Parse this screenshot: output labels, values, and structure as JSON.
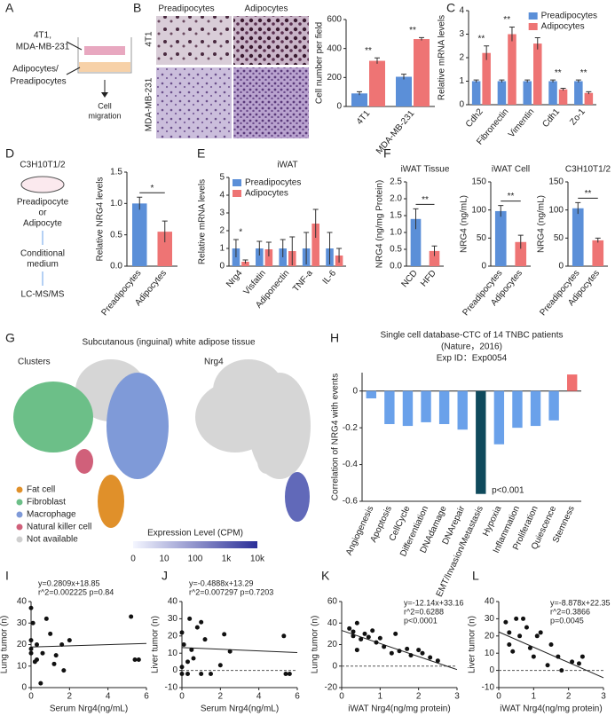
{
  "panel_letters": [
    "A",
    "B",
    "C",
    "D",
    "E",
    "F",
    "G",
    "H",
    "I",
    "J",
    "K",
    "L"
  ],
  "diagrams": {
    "a": {
      "line1": "4T1,",
      "line2": "MDA-MB-231",
      "line3": "Adipocytes/",
      "line4": "Preadipocytes",
      "out1": "Cell",
      "out2": "migration"
    },
    "b": {
      "cols": [
        "Preadipocytes",
        "Adipocytes"
      ],
      "rows": [
        "4T1",
        "MDA-MB-231"
      ]
    },
    "d": {
      "lines": [
        "C3H10T1/2",
        "Preadipocyte",
        "or",
        "Adipocyte",
        "Conditional",
        "medium",
        "LC-MS/MS"
      ]
    },
    "g": {
      "title": "Subcutanous (inguinal) white adipose tissue",
      "left": "Clusters",
      "right": "Nrg4",
      "legend": [
        {
          "name": "Fat cell",
          "color": "#e0902a"
        },
        {
          "name": "Fibroblast",
          "color": "#6cbf88"
        },
        {
          "name": "Macrophage",
          "color": "#7f9ad8"
        },
        {
          "name": "Natural killer cell",
          "color": "#d0607a"
        },
        {
          "name": "Not available",
          "color": "#cfcfcf"
        }
      ],
      "scale_title": "Expression Level (CPM)",
      "scale_labels": [
        "0",
        "10",
        "100",
        "1k",
        "10k"
      ]
    }
  },
  "chart_data": [
    {
      "type": "bar",
      "ylabel": "Cell number per field",
      "categories": [
        "4T1",
        "MDA-MB-231"
      ],
      "series": [
        {
          "color": "#5b8fd8",
          "values": [
            90,
            205
          ],
          "errors": [
            12,
            18
          ]
        },
        {
          "color": "#ee7474",
          "values": [
            315,
            465
          ],
          "errors": [
            20,
            10
          ]
        }
      ],
      "ylim": [
        0,
        600
      ],
      "yticks": [
        0,
        200,
        400,
        600
      ],
      "annotations": [
        "**",
        "**"
      ]
    },
    {
      "type": "bar",
      "ylabel": "Relative mRNA levels",
      "categories": [
        "Cdh2",
        "Fibronectin",
        "Vimentin",
        "Cdh1",
        "Zo-1"
      ],
      "series": [
        {
          "name": "Preadipocytes",
          "color": "#5b8fd8",
          "values": [
            1,
            1,
            1,
            1,
            1
          ],
          "errors": [
            0.05,
            0.05,
            0.05,
            0.05,
            0.05
          ]
        },
        {
          "name": "Adipocytes",
          "color": "#ee7474",
          "values": [
            2.2,
            3.0,
            2.6,
            0.65,
            0.5
          ],
          "errors": [
            0.3,
            0.3,
            0.25,
            0.05,
            0.05
          ]
        }
      ],
      "ylim": [
        0,
        4
      ],
      "yticks": [
        0,
        1,
        2,
        3,
        4
      ],
      "legend": true,
      "annotations": [
        "**",
        "**",
        "**",
        "**",
        "**"
      ]
    },
    {
      "type": "bar",
      "ylabel": "Relative NRG4 levels",
      "categories": [
        "Preadipocytes",
        "Adipocytes"
      ],
      "values": [
        1.0,
        0.55
      ],
      "errors": [
        0.1,
        0.17
      ],
      "colors": [
        "#5b8fd8",
        "#ee7474"
      ],
      "ylim": [
        0,
        1.5
      ],
      "yticks": [
        {
          "value": 0,
          "label": "0.0"
        },
        {
          "value": 0.5,
          "label": "0.5"
        },
        {
          "value": 1,
          "label": "1.0"
        },
        {
          "value": 1.5,
          "label": "1.5"
        }
      ],
      "annotations": [
        "*"
      ]
    },
    {
      "type": "bar",
      "title": "iWAT",
      "ylabel": "Relative mRNA levels",
      "categories": [
        "Nrg4",
        "Visfatin",
        "Adiponectin",
        "TNF-a",
        "IL-6"
      ],
      "series": [
        {
          "name": "Preadipocytes",
          "color": "#5b8fd8",
          "values": [
            1,
            1,
            1,
            1,
            1
          ],
          "errors": [
            0.5,
            0.4,
            0.5,
            0.9,
            0.9
          ]
        },
        {
          "name": "Adipocytes",
          "color": "#ee7474",
          "values": [
            0.25,
            0.95,
            0.85,
            2.4,
            0.6
          ],
          "errors": [
            0.1,
            0.4,
            0.8,
            0.8,
            0.4
          ]
        }
      ],
      "ylim": [
        0,
        5
      ],
      "yticks": [
        0,
        1,
        2,
        3,
        4,
        5
      ],
      "legend": true,
      "annotations": [
        "*"
      ]
    },
    {
      "type": "bar",
      "title": "iWAT Tissue",
      "ylabel": "NRG4 (ng/mg Protein)",
      "categories": [
        "NCD",
        "HFD"
      ],
      "values": [
        1.4,
        0.45
      ],
      "errors": [
        0.3,
        0.15
      ],
      "colors": [
        "#5b8fd8",
        "#ee7474"
      ],
      "ylim": [
        0,
        2.5
      ],
      "yticks": [
        {
          "value": 0,
          "label": "0.0"
        },
        {
          "value": 0.5,
          "label": "0.5"
        },
        {
          "value": 1,
          "label": "1.0"
        },
        {
          "value": 1.5,
          "label": "1.5"
        },
        {
          "value": 2,
          "label": "2.0"
        },
        {
          "value": 2.5,
          "label": "2.5"
        }
      ],
      "annotations": [
        "**"
      ]
    },
    {
      "type": "bar",
      "title": "iWAT Cell",
      "ylabel": "NRG4 (ng/mL)",
      "categories": [
        "Preadipocytes",
        "Adipocytes"
      ],
      "values": [
        98,
        43
      ],
      "errors": [
        10,
        12
      ],
      "colors": [
        "#5b8fd8",
        "#ee7474"
      ],
      "ylim": [
        0,
        150
      ],
      "yticks": [
        0,
        50,
        100,
        150
      ],
      "annotations": [
        "**"
      ]
    },
    {
      "type": "bar",
      "title": "C3H10T1/2",
      "ylabel": "NRG4 (ng/mL)",
      "categories": [
        "Preadipocytes",
        "Adipocytes"
      ],
      "values": [
        103,
        46
      ],
      "errors": [
        10,
        4
      ],
      "colors": [
        "#5b8fd8",
        "#ee7474"
      ],
      "ylim": [
        0,
        150
      ],
      "yticks": [
        0,
        50,
        100,
        150
      ],
      "annotations": [
        "**"
      ]
    },
    {
      "type": "bar",
      "title": [
        "Single cell database-CTC of 14 TNBC patients",
        "(Nature，2016)",
        "Exp ID：Exp0054"
      ],
      "ylabel": "Correlation of NRG4 with events",
      "categories": [
        "Angiogenesis",
        "Apoptosis",
        "CellCycle",
        "Differentiation",
        "DNAdamage",
        "DNArepair",
        "EMT/Invasion/Metastasis",
        "Hypoxia",
        "Inflammation",
        "Proliferation",
        "Quiescence",
        "Stemness"
      ],
      "values": [
        -0.04,
        -0.18,
        -0.19,
        -0.17,
        -0.18,
        -0.21,
        -0.56,
        -0.29,
        -0.2,
        -0.19,
        -0.16,
        0.09
      ],
      "colors": [
        "#6aa1ea",
        "#6aa1ea",
        "#6aa1ea",
        "#6aa1ea",
        "#6aa1ea",
        "#6aa1ea",
        "#0f4a5c",
        "#6aa1ea",
        "#6aa1ea",
        "#6aa1ea",
        "#6aa1ea",
        "#f07070"
      ],
      "ylim": [
        -0.6,
        0.1
      ],
      "yticks": [
        0,
        -0.2,
        -0.4,
        -0.6
      ],
      "annotations": [
        "p<0.001"
      ]
    },
    {
      "type": "scatter",
      "xlabel": "Serum Nrg4(ng/mL)",
      "ylabel": "Lung tumor (n)",
      "annotations": [
        "y=0.2809x+18.85",
        "r^2=0.002225 p=0.84"
      ],
      "fit": {
        "slope": 0.2809,
        "intercept": 18.85
      },
      "x": [
        0,
        0,
        0,
        0,
        0.1,
        0.2,
        0.3,
        0.3,
        0.5,
        0.6,
        0.8,
        1.0,
        1.2,
        1.3,
        1.6,
        1.7,
        2.0,
        5.2,
        5.4,
        5.6
      ],
      "values": [
        37,
        22,
        18,
        16,
        30,
        12,
        20,
        13,
        2,
        16,
        32,
        25,
        11,
        15,
        20,
        8,
        22,
        33,
        13,
        13
      ],
      "xlim": [
        0,
        6
      ],
      "xticks": [
        0,
        2,
        4,
        6
      ],
      "ylim": [
        0,
        40
      ],
      "yticks": [
        0,
        10,
        20,
        30,
        40
      ]
    },
    {
      "type": "scatter",
      "xlabel": "Serum Nrg4(ng/mL)",
      "ylabel": "Liver tumor (n)",
      "annotations": [
        "y=-0.4888x+13.29",
        "r^2=0.007297 p=0.7203"
      ],
      "fit": {
        "slope": -0.4888,
        "intercept": 13.29
      },
      "x": [
        0,
        0,
        0,
        0.1,
        0.3,
        0.3,
        0.4,
        0.5,
        0.6,
        0.8,
        1.0,
        1.0,
        1.2,
        1.5,
        2.0,
        2.2,
        2.5,
        5.3,
        5.4,
        5.6
      ],
      "values": [
        22,
        2,
        -2,
        15,
        5,
        -2,
        30,
        12,
        7,
        25,
        28,
        -2,
        18,
        -2,
        3,
        21,
        11,
        20,
        -2,
        -2
      ],
      "xlim": [
        0,
        6
      ],
      "xticks": [
        0,
        2,
        4,
        6
      ],
      "ylim": [
        -10,
        40
      ],
      "yticks": [
        -10,
        0,
        10,
        20,
        30,
        40
      ]
    },
    {
      "type": "scatter",
      "xlabel": "iWAT Nrg4(ng/mg protein)",
      "ylabel": "Lung tumor (n)",
      "annotations": [
        "y=-12.14x+33.16",
        "r^2=0.6288",
        "p<0.0001"
      ],
      "fit": {
        "slope": -12.14,
        "intercept": 33.16
      },
      "x": [
        0.2,
        0.3,
        0.3,
        0.4,
        0.4,
        0.5,
        0.6,
        0.7,
        0.8,
        0.9,
        1.0,
        1.1,
        1.3,
        1.4,
        1.5,
        1.7,
        1.8,
        2.0,
        2.1,
        2.3,
        2.5
      ],
      "values": [
        35,
        28,
        32,
        40,
        15,
        25,
        30,
        27,
        33,
        22,
        26,
        18,
        12,
        30,
        14,
        16,
        10,
        15,
        12,
        8,
        5
      ],
      "xlim": [
        0,
        3
      ],
      "xticks": [
        0,
        1,
        2,
        3
      ],
      "ylim": [
        -20,
        60
      ],
      "yticks": [
        -20,
        0,
        20,
        40,
        60
      ]
    },
    {
      "type": "scatter",
      "xlabel": "iWAT Nrg4(ng/mg protein)",
      "ylabel": "Liver tumor (n)",
      "annotations": [
        "y=-8.878x+22.35",
        "r^2=0.3866",
        "p=0.0045"
      ],
      "fit": {
        "slope": -8.878,
        "intercept": 22.35
      },
      "x": [
        0.2,
        0.3,
        0.3,
        0.4,
        0.5,
        0.6,
        0.7,
        0.8,
        0.9,
        1.0,
        1.1,
        1.2,
        1.4,
        1.5,
        1.7,
        1.8,
        2.1,
        2.3,
        2.4
      ],
      "values": [
        28,
        22,
        15,
        11,
        30,
        20,
        30,
        25,
        13,
        8,
        20,
        22,
        3,
        15,
        8,
        0,
        5,
        4,
        8
      ],
      "xlim": [
        0,
        3
      ],
      "xticks": [
        0,
        1,
        2,
        3
      ],
      "ylim": [
        -10,
        40
      ],
      "yticks": [
        -10,
        0,
        10,
        20,
        30,
        40
      ]
    }
  ]
}
